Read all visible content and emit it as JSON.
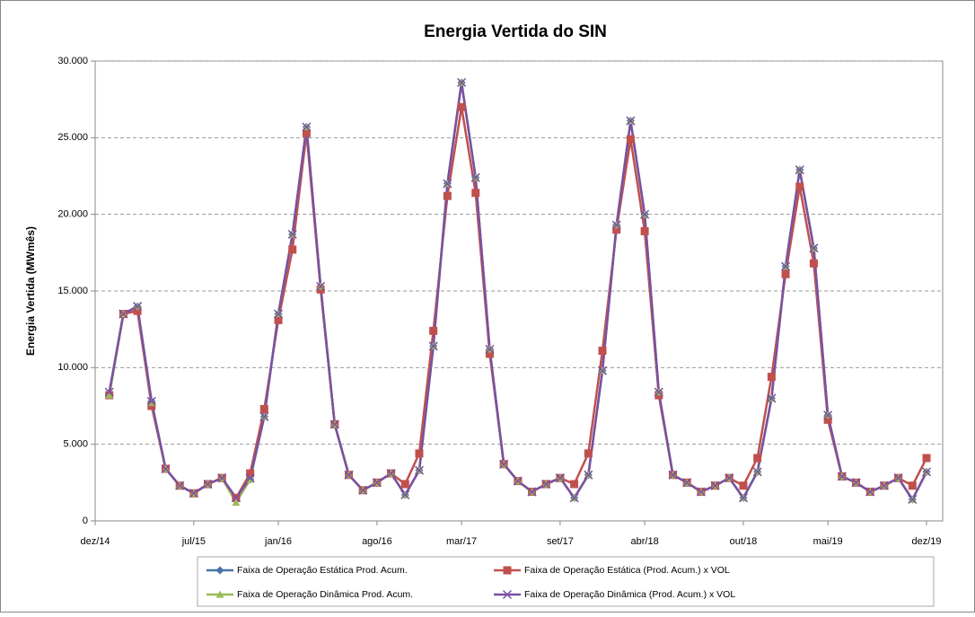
{
  "chart_data": {
    "type": "line",
    "title": "Energia Vertida do SIN",
    "y_label": "Energia Vertida (MWmês)",
    "categories": [
      "dez/14",
      null,
      null,
      null,
      null,
      null,
      null,
      "jul/15",
      null,
      null,
      null,
      null,
      null,
      "jan/16",
      null,
      null,
      null,
      null,
      null,
      null,
      "ago/16",
      null,
      null,
      null,
      null,
      null,
      "mar/17",
      null,
      null,
      null,
      null,
      null,
      null,
      "set/17",
      null,
      null,
      null,
      null,
      null,
      "abr/18",
      null,
      null,
      null,
      null,
      null,
      null,
      "out/18",
      null,
      null,
      null,
      null,
      null,
      "mai/19",
      null,
      null,
      null,
      null,
      null,
      null,
      "dez/19"
    ],
    "series": [
      {
        "name": "Faixa de Operação Estática Prod. Acum.",
        "color": "#4572a7",
        "marker": "diamond",
        "values": [
          null,
          8200,
          13500,
          14000,
          7800,
          3400,
          2300,
          1800,
          2400,
          2800,
          1500,
          2700,
          6800,
          13500,
          18700,
          25700,
          15300,
          6300,
          3000,
          2000,
          2500,
          3100,
          1700,
          3300,
          11400,
          22000,
          28600,
          22400,
          11200,
          3700,
          2600,
          1900,
          2400,
          2800,
          1500,
          3000,
          9800,
          19300,
          26100,
          20000,
          8400,
          3000,
          2500,
          1900,
          2300,
          2800,
          1500,
          3200,
          8000,
          16600,
          22900,
          17800,
          6900,
          2900,
          2500,
          1900,
          2300,
          2800,
          1400,
          3200
        ]
      },
      {
        "name": "Faixa de Operação Estática  (Prod. Acum.) x VOL",
        "color": "#c0504d",
        "marker": "square",
        "values": [
          null,
          8200,
          13500,
          13700,
          7500,
          3400,
          2300,
          1800,
          2400,
          2800,
          1500,
          3100,
          7300,
          13100,
          17700,
          25300,
          15100,
          6300,
          3000,
          2000,
          2500,
          3100,
          2400,
          4400,
          12400,
          21200,
          27000,
          21400,
          10900,
          3700,
          2600,
          1900,
          2400,
          2800,
          2400,
          4400,
          11100,
          19000,
          24900,
          18900,
          8200,
          3000,
          2500,
          1900,
          2300,
          2800,
          2300,
          4100,
          9400,
          16100,
          21800,
          16800,
          6600,
          2900,
          2500,
          1900,
          2300,
          2800,
          2300,
          4100
        ]
      },
      {
        "name": "Faixa de Operação Dinâmica Prod. Acum.",
        "color": "#9bbb59",
        "marker": "triangle",
        "values": [
          null,
          8200,
          13500,
          14000,
          7700,
          3400,
          2300,
          1800,
          2400,
          2800,
          1200,
          2700,
          6800,
          13500,
          18700,
          25700,
          15300,
          6300,
          3000,
          2000,
          2500,
          3100,
          1700,
          3300,
          11400,
          22000,
          28600,
          22400,
          11200,
          3700,
          2600,
          1900,
          2400,
          2800,
          1500,
          3000,
          9800,
          19300,
          26100,
          20000,
          8400,
          3000,
          2500,
          1900,
          2300,
          2800,
          1500,
          3200,
          8000,
          16600,
          22900,
          17800,
          6900,
          2900,
          2500,
          1900,
          2300,
          2800,
          1400,
          3200
        ]
      },
      {
        "name": "Faixa de Operação Dinâmica (Prod. Acum.) x VOL",
        "color": "#7b4fa3",
        "marker": "x",
        "values": [
          null,
          8400,
          13500,
          14000,
          7800,
          3400,
          2300,
          1800,
          2400,
          2800,
          1500,
          2800,
          6800,
          13500,
          18700,
          25700,
          15300,
          6300,
          3000,
          2000,
          2500,
          3100,
          1700,
          3300,
          11400,
          22000,
          28600,
          22400,
          11200,
          3700,
          2600,
          1900,
          2400,
          2800,
          1500,
          3000,
          9800,
          19300,
          26100,
          20000,
          8400,
          3000,
          2500,
          1900,
          2300,
          2800,
          1500,
          3200,
          8000,
          16600,
          22900,
          17800,
          6900,
          2900,
          2500,
          1900,
          2300,
          2800,
          1400,
          3200
        ]
      }
    ],
    "ylim": [
      0,
      30000
    ],
    "yticks": [
      0,
      {
        "value": 5000,
        "label": "5.000"
      },
      {
        "value": 10000,
        "label": "10.000"
      },
      {
        "value": 15000,
        "label": "15.000"
      },
      {
        "value": 20000,
        "label": "20.000"
      },
      {
        "value": 25000,
        "label": "25.000"
      },
      {
        "value": 30000,
        "label": "30.000"
      }
    ],
    "grid": true,
    "legend_position": "bottom"
  }
}
